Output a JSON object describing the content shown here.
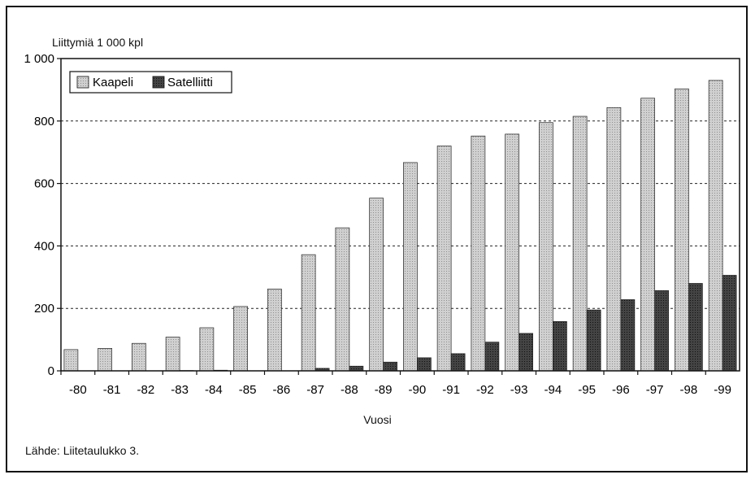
{
  "source_note": "Lähde: Liitetaulukko 3.",
  "chart_data": {
    "type": "bar",
    "title": "",
    "ylabel": "Liittymiä 1 000 kpl",
    "xlabel": "Vuosi",
    "ylim": [
      0,
      1000
    ],
    "yticks": [
      0,
      200,
      400,
      600,
      800,
      1000
    ],
    "ytick_labels": [
      "0",
      "200",
      "400",
      "600",
      "800",
      "1 000"
    ],
    "grid": "horizontal dashed",
    "legend_position": "top-left",
    "categories": [
      "-80",
      "-81",
      "-82",
      "-83",
      "-84",
      "-85",
      "-86",
      "-87",
      "-88",
      "-89",
      "-90",
      "-91",
      "-92",
      "-93",
      "-94",
      "-95",
      "-96",
      "-97",
      "-98",
      "-99"
    ],
    "series": [
      {
        "name": "Kaapeli",
        "color": "#c9c9c9",
        "values": [
          68,
          72,
          88,
          108,
          138,
          206,
          262,
          372,
          458,
          553,
          667,
          720,
          752,
          758,
          795,
          815,
          843,
          873,
          903,
          930
        ]
      },
      {
        "name": "Satelliitti",
        "color": "#3a3a3a",
        "values": [
          0,
          0,
          0,
          1,
          2,
          0,
          0,
          8,
          15,
          28,
          42,
          55,
          92,
          120,
          158,
          195,
          228,
          257,
          280,
          306
        ]
      }
    ]
  }
}
